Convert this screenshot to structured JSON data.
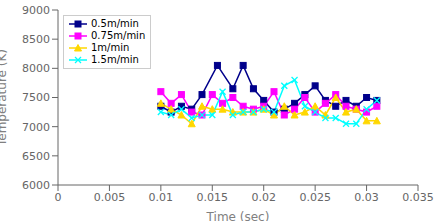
{
  "chart_data": {
    "type": "line",
    "xlabel": "Time (sec)",
    "ylabel": "Temperature (K)",
    "xlim": [
      0,
      0.035
    ],
    "ylim": [
      6000,
      9000
    ],
    "xticks": [
      0,
      0.005,
      0.01,
      0.015,
      0.02,
      0.025,
      0.03,
      0.035
    ],
    "yticks": [
      6000,
      6500,
      7000,
      7500,
      8000,
      8500,
      9000
    ],
    "grid": false,
    "legend": "upper left",
    "series": [
      {
        "name": "0.5m/min",
        "color": "#00008B",
        "marker": "square",
        "x": [
          0.01,
          0.011,
          0.012,
          0.013,
          0.014,
          0.0155,
          0.017,
          0.018,
          0.019,
          0.02,
          0.021,
          0.022,
          0.023,
          0.024,
          0.025,
          0.026,
          0.027,
          0.028,
          0.029,
          0.03,
          0.031
        ],
        "values": [
          7350,
          7250,
          7350,
          7300,
          7550,
          8050,
          7650,
          8050,
          7650,
          7450,
          7250,
          7300,
          7400,
          7550,
          7700,
          7450,
          7350,
          7450,
          7350,
          7500,
          7450
        ]
      },
      {
        "name": "0.75m/min",
        "color": "#FF00FF",
        "marker": "square",
        "x": [
          0.01,
          0.011,
          0.012,
          0.013,
          0.014,
          0.015,
          0.016,
          0.017,
          0.018,
          0.019,
          0.02,
          0.021,
          0.022,
          0.023,
          0.024,
          0.025,
          0.026,
          0.027,
          0.028,
          0.029,
          0.03,
          0.031
        ],
        "values": [
          7600,
          7400,
          7550,
          7250,
          7200,
          7550,
          7400,
          7500,
          7350,
          7300,
          7350,
          7600,
          7200,
          7300,
          7500,
          7250,
          7400,
          7550,
          7350,
          7300,
          7250,
          7350
        ]
      },
      {
        "name": "1m/min",
        "color": "#FFD700",
        "marker": "triangle",
        "x": [
          0.01,
          0.011,
          0.012,
          0.013,
          0.014,
          0.015,
          0.016,
          0.017,
          0.018,
          0.019,
          0.02,
          0.021,
          0.022,
          0.023,
          0.024,
          0.025,
          0.026,
          0.027,
          0.028,
          0.029,
          0.03,
          0.031
        ],
        "values": [
          7400,
          7300,
          7200,
          7050,
          7350,
          7300,
          7300,
          7250,
          7250,
          7250,
          7300,
          7200,
          7350,
          7200,
          7250,
          7350,
          7200,
          7500,
          7250,
          7300,
          7100,
          7100
        ]
      },
      {
        "name": "1.5m/min",
        "color": "#00FFFF",
        "marker": "x",
        "x": [
          0.01,
          0.011,
          0.012,
          0.013,
          0.014,
          0.015,
          0.016,
          0.017,
          0.018,
          0.019,
          0.02,
          0.021,
          0.022,
          0.023,
          0.024,
          0.025,
          0.026,
          0.027,
          0.028,
          0.029,
          0.03,
          0.031
        ],
        "values": [
          7250,
          7200,
          7300,
          7150,
          7200,
          7200,
          7600,
          7200,
          7250,
          7250,
          7300,
          7250,
          7700,
          7800,
          7350,
          7250,
          7150,
          7150,
          7050,
          7050,
          7300,
          7450
        ]
      }
    ]
  }
}
